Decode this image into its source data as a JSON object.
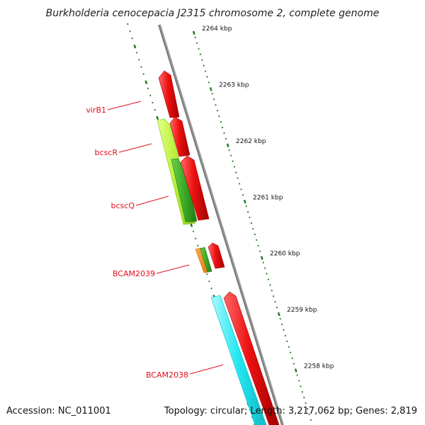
{
  "title": "Burkholderia cenocepacia J2315 chromosome 2, complete genome",
  "footer": {
    "accession": "Accession: NC_011001",
    "summary": "Topology: circular; Length: 3,217,062 bp; Genes: 2,819"
  },
  "ticks": [
    {
      "label": "2264 kbp"
    },
    {
      "label": "2263 kbp"
    },
    {
      "label": "2262 kbp"
    },
    {
      "label": "2261 kbp"
    },
    {
      "label": "2260 kbp"
    },
    {
      "label": "2259 kbp"
    },
    {
      "label": "2258 kbp"
    }
  ],
  "gene_labels": [
    "virB1",
    "bcscR",
    "bcscQ",
    "BCAM2039",
    "BCAM2038"
  ],
  "colors": {
    "backbone": "#888888",
    "tick": "#1a7a1a",
    "red_feature": "#ee1111",
    "lime_feature": "#b4f032",
    "green_feature": "#3caa28",
    "orange_feature": "#ff8c1a",
    "cyan_feature": "#22e6f0",
    "label": "#e0101e"
  }
}
